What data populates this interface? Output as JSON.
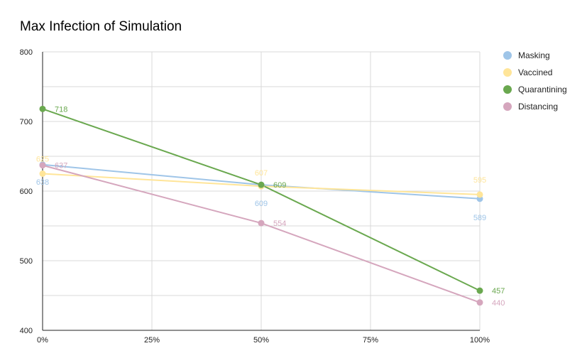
{
  "chart_data": {
    "type": "line",
    "title": "Max Infection of Simulation",
    "x": [
      "0%",
      "25%",
      "50%",
      "75%",
      "100%"
    ],
    "x_values": [
      0,
      25,
      50,
      75,
      100
    ],
    "ylim": [
      400,
      800
    ],
    "yticks": [
      "400",
      "500",
      "600",
      "700",
      "800"
    ],
    "ytick_values": [
      400,
      500,
      600,
      700,
      800
    ],
    "grid": true,
    "legend_position": "right",
    "series": [
      {
        "name": "Masking",
        "color": "#9fc5e8",
        "points": [
          {
            "x": 0,
            "y": 638,
            "label": "638"
          },
          {
            "x": 50,
            "y": 609,
            "label": "609"
          },
          {
            "x": 100,
            "y": 589,
            "label": "589"
          }
        ]
      },
      {
        "name": "Vaccined",
        "color": "#ffe599",
        "points": [
          {
            "x": 0,
            "y": 625,
            "label": "625"
          },
          {
            "x": 50,
            "y": 607,
            "label": "607"
          },
          {
            "x": 100,
            "y": 595,
            "label": "595"
          }
        ]
      },
      {
        "name": "Quarantining",
        "color": "#6aa84f",
        "points": [
          {
            "x": 0,
            "y": 718,
            "label": "718"
          },
          {
            "x": 50,
            "y": 609,
            "label": "609"
          },
          {
            "x": 100,
            "y": 457,
            "label": "457"
          }
        ]
      },
      {
        "name": "Distancing",
        "color": "#d5a6bd",
        "points": [
          {
            "x": 0,
            "y": 637,
            "label": "637"
          },
          {
            "x": 50,
            "y": 554,
            "label": "554"
          },
          {
            "x": 100,
            "y": 440,
            "label": "440"
          }
        ]
      }
    ]
  }
}
